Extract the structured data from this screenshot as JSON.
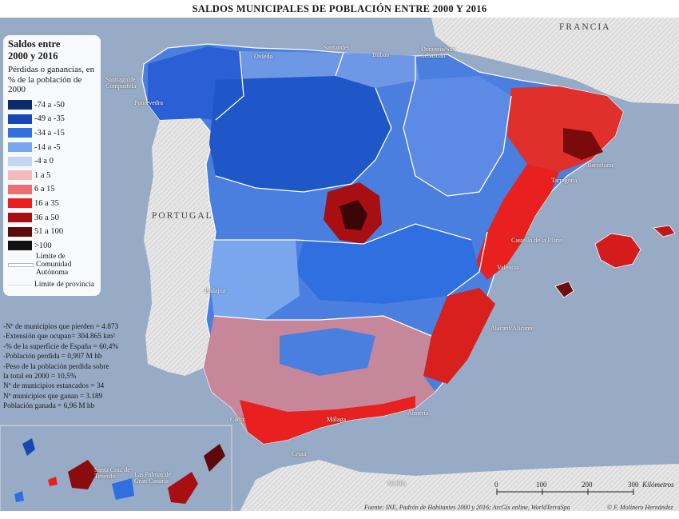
{
  "title": "SALDOS MUNICIPALES DE POBLACIÓN ENTRE 2000 Y 2016",
  "legend": {
    "title_line1": "Saldos entre",
    "title_line2": "2000 y 2016",
    "subtitle": "Pérdidas o ganancias, en % de la población de 2000",
    "classes": [
      {
        "label": "-74 a -50",
        "color": "#0b2a6b"
      },
      {
        "label": "-49 a -35",
        "color": "#1747b3"
      },
      {
        "label": "-34 a -15",
        "color": "#2f6fe0"
      },
      {
        "label": "-14 a -5",
        "color": "#7aa6ee"
      },
      {
        "label": "-4 a 0",
        "color": "#c6d6f2"
      },
      {
        "label": "1 a 5",
        "color": "#f4b9bd"
      },
      {
        "label": "6 a 15",
        "color": "#ee6f73"
      },
      {
        "label": "16 a 35",
        "color": "#e8201f"
      },
      {
        "label": "36 a 50",
        "color": "#a80f12"
      },
      {
        "label": "51 a 100",
        "color": "#5e0a0a"
      },
      {
        "label": ">100",
        "color": "#111111"
      }
    ],
    "boundaries": [
      {
        "label": "Límite de Comunidad Autónoma"
      },
      {
        "label": "Límite de provincia"
      }
    ]
  },
  "stats": [
    "-Nº de municipios que pierden = 4.873",
    "-Extensión que ocupan= 304.865 km²",
    "-% de la superficie de España = 60,4%",
    "-Población perdida = 0,907 M hb",
    "-Peso de la población perdida sobre",
    " la total en 2000 = 10,5%",
    "Nº de municipios estancados = 34",
    "Nº municipios que ganan = 3.189",
    "Población ganada = 6,96 M hb"
  ],
  "countries": {
    "portugal": "PORTUGAL",
    "francia": "FRANCIA"
  },
  "places": {
    "santander": "Santander",
    "bilbao": "Bilbao",
    "donostia": "Donostia/San Sebastián",
    "santiago": "Santiago de Compostela",
    "oviedo": "Oviedo",
    "pontevedra": "Pontevedra",
    "barcelona": "Barcelona",
    "tarragona": "Tarragona",
    "castello": "Castelló de la Plana",
    "valencia": "València",
    "alacant": "Alacant/Alicante",
    "badajoz": "Badajoz",
    "cadiz": "Cádiz",
    "malaga": "Málaga",
    "almeria": "Almería",
    "ceuta": "Ceuta",
    "melilla": "Melilla",
    "santa_cruz": "Santa Cruz de Tenerife",
    "las_palmas": "Las Palmas de Gran Canaria"
  },
  "scale": {
    "ticks": [
      "0",
      "100",
      "200",
      "300"
    ],
    "unit": "Kilómetros"
  },
  "source": "Fuente: INE, Padrón de Habitantes 2000 y 2016; ArcGis online, WorldTerraSpa",
  "credit": "© F. Molinero Hernández"
}
